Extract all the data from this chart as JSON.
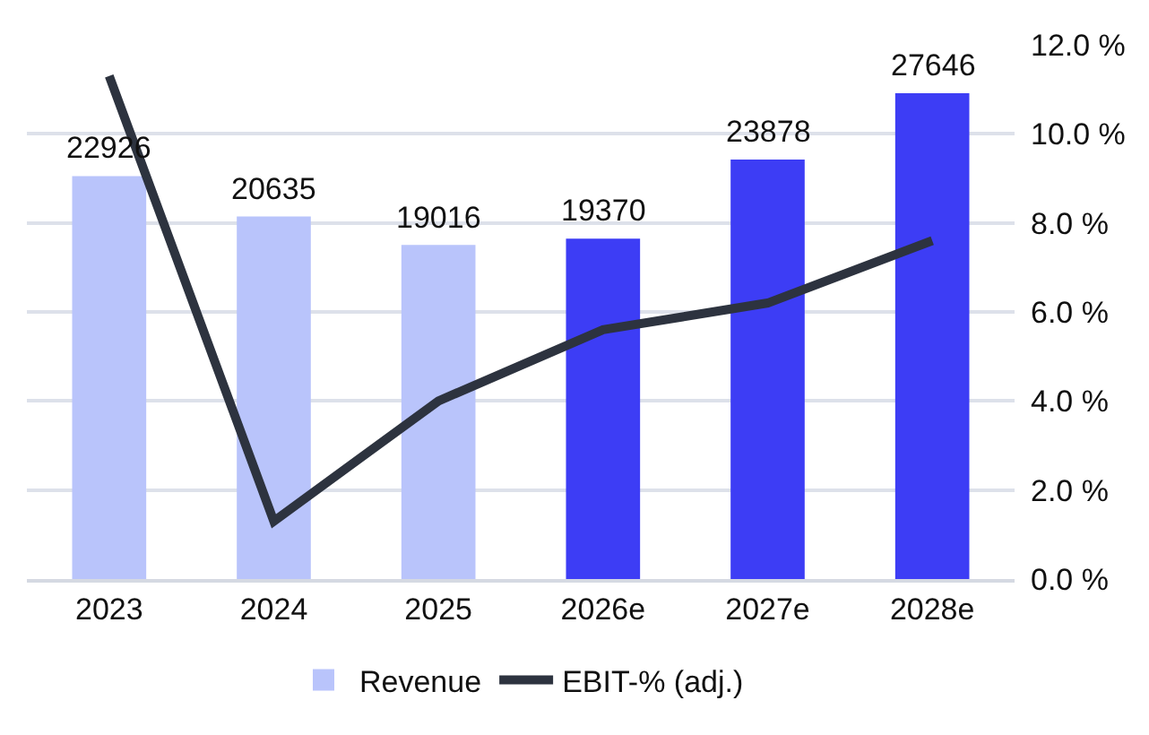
{
  "chart_data": {
    "type": "bar",
    "categories": [
      "2023",
      "2024",
      "2025",
      "2026e",
      "2027e",
      "2028e"
    ],
    "series": [
      {
        "name": "Revenue",
        "colors": [
          "#b9c4fb",
          "#b9c4fb",
          "#b9c4fb",
          "#3d3df5",
          "#3d3df5",
          "#3d3df5"
        ],
        "values": [
          22926,
          20635,
          19016,
          19370,
          23878,
          27646
        ],
        "value_labels": [
          "22926",
          "20635",
          "19016",
          "19370",
          "23878",
          "27646"
        ]
      },
      {
        "name": "EBIT-% (adj.)",
        "type": "line",
        "axis": "y2",
        "color": "#2d333f",
        "values": [
          11.3,
          1.3,
          4.0,
          5.6,
          6.2,
          7.6
        ]
      }
    ],
    "y2lim": [
      0,
      12
    ],
    "y2ticks": [
      {
        "value": 0,
        "label": "0.0 %"
      },
      {
        "value": 2,
        "label": "2.0 %"
      },
      {
        "value": 4,
        "label": "4.0 %"
      },
      {
        "value": 6,
        "label": "6.0 %"
      },
      {
        "value": 8,
        "label": "8.0 %"
      },
      {
        "value": 10,
        "label": "10.0 %"
      },
      {
        "value": 12,
        "label": "12.0 %"
      }
    ],
    "grid": "y",
    "legend": "bottom",
    "marker": "none",
    "line_style": "solid"
  }
}
